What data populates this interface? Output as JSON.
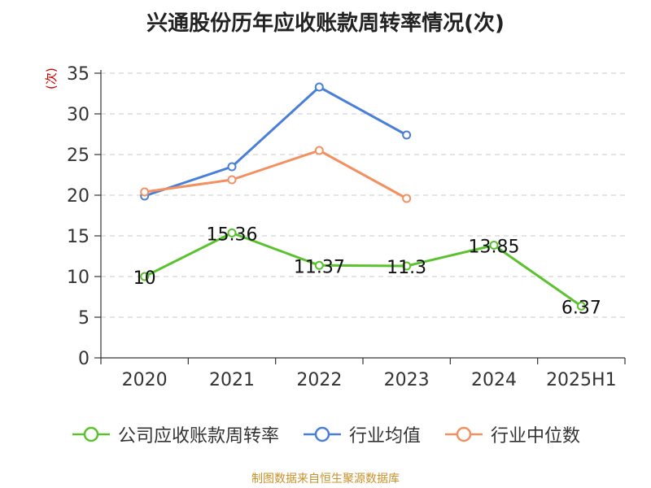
{
  "chart_data": {
    "type": "line",
    "title": "兴通股份历年应收账款周转率情况(次)",
    "ylabel": "(次)",
    "categories": [
      "2020",
      "2021",
      "2022",
      "2023",
      "2024",
      "2025H1"
    ],
    "ylim": [
      0,
      35
    ],
    "yticks": [
      "0",
      "5",
      "10",
      "15",
      "20",
      "25",
      "30",
      "35"
    ],
    "grid": true,
    "legend_position": "bottom",
    "series": [
      {
        "name": "公司应收账款周转率",
        "color": "#5ac22e",
        "values": [
          10,
          15.36,
          11.37,
          11.3,
          13.85,
          6.37
        ],
        "labels": [
          "10",
          "15.36",
          "11.37",
          "11.3",
          "13.85",
          "6.37"
        ]
      },
      {
        "name": "行业均值",
        "color": "#4a7fd8",
        "values": [
          19.9,
          23.5,
          33.3,
          27.4,
          null,
          null
        ]
      },
      {
        "name": "行业中位数",
        "color": "#f39062",
        "values": [
          20.4,
          21.9,
          25.5,
          19.6,
          null,
          null
        ]
      }
    ]
  },
  "source": "制图数据来自恒生聚源数据库"
}
